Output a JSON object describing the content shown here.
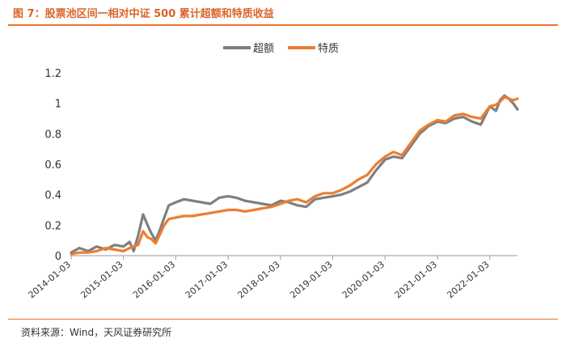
{
  "title": "图 7：股票池区间一相对中证 500 累计超额和特质收益",
  "source": "资料来源：Wind，天风证券研究所",
  "colors": {
    "accent": "#e8732c",
    "series_grey": "#7f7f7f",
    "series_orange": "#ed7d31"
  },
  "chart_data": {
    "type": "line",
    "xlabel": "",
    "ylabel": "",
    "ylim": [
      0,
      1.2
    ],
    "yticks": [
      0,
      0.2,
      0.4,
      0.6,
      0.8,
      1,
      1.2
    ],
    "ytick_labels": [
      "0",
      "0.2",
      "0.4",
      "0.6",
      "0.8",
      "1",
      "1.2"
    ],
    "xlim": [
      "2014-01-03",
      "2022-07-15"
    ],
    "xticks": [
      "2014-01-03",
      "2015-01-03",
      "2016-01-03",
      "2017-01-03",
      "2018-01-03",
      "2019-01-03",
      "2020-01-03",
      "2021-01-03",
      "2022-01-03"
    ],
    "grid": false,
    "legend_position": "top-center",
    "series": [
      {
        "name": "超额",
        "color": "#7f7f7f",
        "x": [
          "2014-01-03",
          "2014-03-01",
          "2014-05-01",
          "2014-07-01",
          "2014-09-01",
          "2014-11-01",
          "2015-01-03",
          "2015-02-15",
          "2015-03-15",
          "2015-04-15",
          "2015-05-20",
          "2015-06-20",
          "2015-07-15",
          "2015-08-15",
          "2015-09-15",
          "2015-10-15",
          "2015-11-15",
          "2016-01-03",
          "2016-03-01",
          "2016-05-01",
          "2016-07-01",
          "2016-09-01",
          "2016-11-01",
          "2017-01-03",
          "2017-03-01",
          "2017-05-01",
          "2017-07-01",
          "2017-09-01",
          "2017-11-01",
          "2018-01-03",
          "2018-03-01",
          "2018-05-01",
          "2018-07-01",
          "2018-09-01",
          "2018-11-01",
          "2019-01-03",
          "2019-03-01",
          "2019-05-01",
          "2019-07-01",
          "2019-09-01",
          "2019-11-01",
          "2020-01-03",
          "2020-03-01",
          "2020-05-01",
          "2020-07-01",
          "2020-09-01",
          "2020-11-01",
          "2021-01-03",
          "2021-03-01",
          "2021-05-01",
          "2021-07-01",
          "2021-09-01",
          "2021-11-01",
          "2022-01-03",
          "2022-02-15",
          "2022-03-15",
          "2022-04-15",
          "2022-05-15",
          "2022-06-15",
          "2022-07-15"
        ],
        "values": [
          0.02,
          0.05,
          0.03,
          0.06,
          0.04,
          0.07,
          0.06,
          0.09,
          0.03,
          0.13,
          0.27,
          0.2,
          0.15,
          0.1,
          0.17,
          0.25,
          0.33,
          0.35,
          0.37,
          0.36,
          0.35,
          0.34,
          0.38,
          0.39,
          0.38,
          0.36,
          0.35,
          0.34,
          0.33,
          0.36,
          0.35,
          0.33,
          0.32,
          0.37,
          0.38,
          0.39,
          0.4,
          0.42,
          0.45,
          0.48,
          0.56,
          0.63,
          0.65,
          0.64,
          0.72,
          0.8,
          0.85,
          0.88,
          0.87,
          0.9,
          0.91,
          0.88,
          0.86,
          0.98,
          0.95,
          1.02,
          1.05,
          1.03,
          1.0,
          0.96
        ]
      },
      {
        "name": "特质",
        "color": "#ed7d31",
        "x": [
          "2014-01-03",
          "2014-03-01",
          "2014-05-01",
          "2014-07-01",
          "2014-09-01",
          "2014-11-01",
          "2015-01-03",
          "2015-02-15",
          "2015-03-15",
          "2015-04-15",
          "2015-05-20",
          "2015-06-20",
          "2015-07-15",
          "2015-08-15",
          "2015-09-15",
          "2015-10-15",
          "2015-11-15",
          "2016-01-03",
          "2016-03-01",
          "2016-05-01",
          "2016-07-01",
          "2016-09-01",
          "2016-11-01",
          "2017-01-03",
          "2017-03-01",
          "2017-05-01",
          "2017-07-01",
          "2017-09-01",
          "2017-11-01",
          "2018-01-03",
          "2018-03-01",
          "2018-05-01",
          "2018-07-01",
          "2018-09-01",
          "2018-11-01",
          "2019-01-03",
          "2019-03-01",
          "2019-05-01",
          "2019-07-01",
          "2019-09-01",
          "2019-11-01",
          "2020-01-03",
          "2020-03-01",
          "2020-05-01",
          "2020-07-01",
          "2020-09-01",
          "2020-11-01",
          "2021-01-03",
          "2021-03-01",
          "2021-05-01",
          "2021-07-01",
          "2021-09-01",
          "2021-11-01",
          "2022-01-03",
          "2022-02-15",
          "2022-03-15",
          "2022-04-15",
          "2022-05-15",
          "2022-06-15",
          "2022-07-15"
        ],
        "values": [
          0.01,
          0.02,
          0.02,
          0.03,
          0.05,
          0.04,
          0.03,
          0.05,
          0.06,
          0.07,
          0.16,
          0.12,
          0.11,
          0.08,
          0.14,
          0.2,
          0.24,
          0.25,
          0.26,
          0.26,
          0.27,
          0.28,
          0.29,
          0.3,
          0.3,
          0.29,
          0.3,
          0.31,
          0.32,
          0.34,
          0.36,
          0.37,
          0.35,
          0.39,
          0.41,
          0.41,
          0.43,
          0.46,
          0.5,
          0.53,
          0.6,
          0.65,
          0.68,
          0.66,
          0.74,
          0.82,
          0.86,
          0.89,
          0.88,
          0.92,
          0.93,
          0.91,
          0.9,
          0.98,
          0.99,
          1.01,
          1.04,
          1.03,
          1.02,
          1.03
        ]
      }
    ]
  }
}
